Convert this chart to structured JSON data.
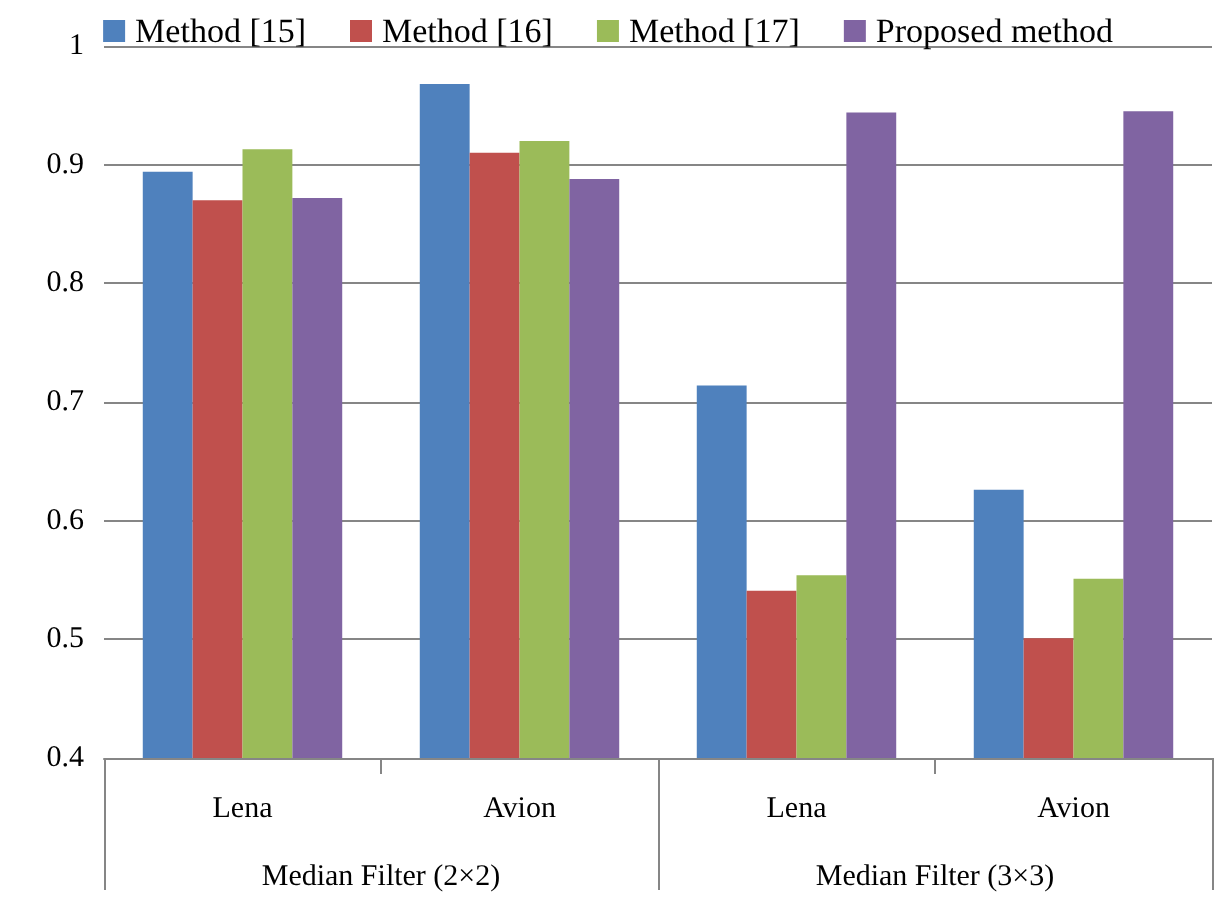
{
  "chart_data": {
    "type": "bar",
    "categories": [
      "Lena",
      "Avion",
      "Lena",
      "Avion"
    ],
    "annotations": [
      "Median Filter (2×2)",
      "Median Filter (3×3)"
    ],
    "series": [
      {
        "name": "Method [15]",
        "color": "#4f81bd",
        "values": [
          0.894,
          0.968,
          0.714,
          0.626
        ]
      },
      {
        "name": "Method [16]",
        "color": "#c0504d",
        "values": [
          0.87,
          0.91,
          0.541,
          0.501
        ]
      },
      {
        "name": "Method [17]",
        "color": "#9bbb59",
        "values": [
          0.913,
          0.92,
          0.554,
          0.551
        ]
      },
      {
        "name": "Proposed method",
        "color": "#8064a2",
        "values": [
          0.872,
          0.888,
          0.944,
          0.945
        ]
      }
    ],
    "ylim": [
      0.4,
      1
    ],
    "yticks": [
      0.4,
      0.5,
      0.6,
      0.7,
      0.8,
      0.9,
      1
    ],
    "grid": "y",
    "legend": "top"
  }
}
